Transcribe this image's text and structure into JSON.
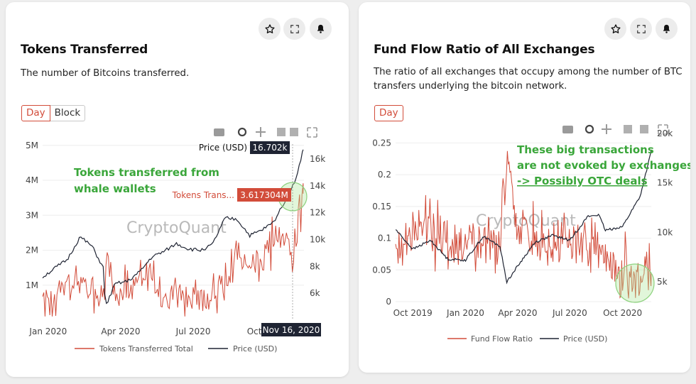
{
  "left_card": {
    "title": "Tokens Transferred",
    "description": "The number of Bitcoins transferred.",
    "buttons": [
      "Day",
      "Block"
    ],
    "watermark": "CryptoQuant",
    "annotation_lines": [
      "Tokens transferred from",
      "whale wallets"
    ],
    "tooltip_price_label": "Price (USD)",
    "tooltip_price_value": "16.702k",
    "tooltip_tokens_label": "Tokens Trans...",
    "tooltip_tokens_value": "3.617304M",
    "tooltip_date": "Nov 16, 2020",
    "icons": [
      "star-icon",
      "expand-icon",
      "bell-icon"
    ]
  },
  "right_card": {
    "title": "Fund Flow Ratio of All Exchanges",
    "description_lines": [
      "The ratio of all exchanges that occupy among the number of BTC",
      "transfers underlying the bitcoin network."
    ],
    "buttons": [
      "Day"
    ],
    "watermark": "CryptoQuant",
    "annotation_lines": [
      "These big transactions",
      "are not evoked by exchanges",
      "-> Possibly OTC deals"
    ],
    "icons": [
      "star-icon",
      "expand-icon",
      "bell-icon"
    ]
  },
  "colors": {
    "accent": "#d24c3a",
    "price_line": "#1f2433",
    "annotation": "#3aa63a",
    "highlight_circle": "#8cd17d"
  },
  "chart_data": [
    {
      "type": "line",
      "title": "Tokens Transferred",
      "x_ticks": [
        "Jan 2020",
        "Apr 2020",
        "Jul 2020",
        "Oct 2020"
      ],
      "y_left_ticks": [
        "1M",
        "2M",
        "3M",
        "4M",
        "5M"
      ],
      "y_right_ticks": [
        "6k",
        "8k",
        "10k",
        "12k",
        "14k",
        "16k"
      ],
      "y_left_range": [
        0,
        5300000
      ],
      "y_right_range": [
        4000,
        17800
      ],
      "x_range": [
        "2019-12-25",
        "2020-11-17"
      ],
      "legend_position": "bottom",
      "series": [
        {
          "name": "Tokens Transferred Total",
          "axis": "left",
          "x": [
            "2019-12-25",
            "2020-01-10",
            "2020-01-25",
            "2020-02-10",
            "2020-02-25",
            "2020-03-10",
            "2020-03-13",
            "2020-03-25",
            "2020-04-10",
            "2020-04-25",
            "2020-05-10",
            "2020-05-25",
            "2020-06-10",
            "2020-06-25",
            "2020-07-10",
            "2020-07-25",
            "2020-08-10",
            "2020-08-25",
            "2020-09-10",
            "2020-09-25",
            "2020-10-10",
            "2020-10-25",
            "2020-11-05",
            "2020-11-10",
            "2020-11-16"
          ],
          "values": [
            700000,
            600000,
            1100000,
            1000000,
            600000,
            900000,
            1800000,
            700000,
            700000,
            1200000,
            1300000,
            600000,
            700000,
            600000,
            600000,
            800000,
            1100000,
            2000000,
            1500000,
            1800000,
            2300000,
            2400000,
            1700000,
            2300000,
            3617304
          ]
        },
        {
          "name": "Price (USD)",
          "axis": "right",
          "x": [
            "2019-12-25",
            "2020-01-10",
            "2020-01-25",
            "2020-02-10",
            "2020-02-25",
            "2020-03-10",
            "2020-03-13",
            "2020-03-25",
            "2020-04-10",
            "2020-04-25",
            "2020-05-10",
            "2020-05-25",
            "2020-06-10",
            "2020-06-25",
            "2020-07-10",
            "2020-07-25",
            "2020-08-10",
            "2020-08-25",
            "2020-09-10",
            "2020-09-25",
            "2020-10-10",
            "2020-10-25",
            "2020-11-05",
            "2020-11-10",
            "2020-11-16"
          ],
          "values": [
            7200,
            7900,
            8500,
            10200,
            9500,
            7900,
            5000,
            6700,
            6900,
            7600,
            8700,
            9100,
            9700,
            9300,
            9200,
            9600,
            11600,
            11500,
            10300,
            10700,
            11300,
            13000,
            14200,
            15300,
            16702
          ]
        }
      ]
    },
    {
      "type": "line",
      "title": "Fund Flow Ratio of All Exchanges",
      "x_ticks": [
        "Oct 2019",
        "Jan 2020",
        "Apr 2020",
        "Jul 2020",
        "Oct 2020"
      ],
      "y_left_ticks": [
        "0",
        "0.05",
        "0.1",
        "0.15",
        "0.2",
        "0.25"
      ],
      "y_right_ticks": [
        "5k",
        "10k",
        "15k",
        "20k"
      ],
      "y_left_range": [
        0,
        0.265
      ],
      "y_right_range": [
        3000,
        20000
      ],
      "x_range": [
        "2019-09-01",
        "2020-11-20"
      ],
      "legend_position": "bottom",
      "series": [
        {
          "name": "Fund Flow Ratio",
          "axis": "left",
          "x": [
            "2019-09-01",
            "2019-10-01",
            "2019-11-01",
            "2019-12-01",
            "2020-01-01",
            "2020-02-01",
            "2020-03-01",
            "2020-03-13",
            "2020-04-01",
            "2020-05-01",
            "2020-06-01",
            "2020-07-01",
            "2020-08-01",
            "2020-08-20",
            "2020-09-01",
            "2020-10-01",
            "2020-11-01",
            "2020-11-20"
          ],
          "values": [
            0.08,
            0.1,
            0.12,
            0.08,
            0.09,
            0.08,
            0.09,
            0.23,
            0.12,
            0.1,
            0.09,
            0.1,
            0.09,
            0.1,
            0.06,
            0.04,
            0.04,
            0.045
          ]
        },
        {
          "name": "Price (USD)",
          "axis": "right",
          "x": [
            "2019-09-01",
            "2019-10-01",
            "2019-11-01",
            "2019-12-01",
            "2020-01-01",
            "2020-02-01",
            "2020-03-01",
            "2020-03-13",
            "2020-04-01",
            "2020-05-01",
            "2020-06-01",
            "2020-07-01",
            "2020-08-01",
            "2020-08-20",
            "2020-09-01",
            "2020-10-01",
            "2020-11-01",
            "2020-11-20"
          ],
          "values": [
            10300,
            8300,
            9200,
            7300,
            7200,
            9600,
            8600,
            5000,
            6600,
            9000,
            9700,
            9200,
            11600,
            11800,
            10200,
            10600,
            13700,
            18200
          ]
        }
      ]
    }
  ]
}
